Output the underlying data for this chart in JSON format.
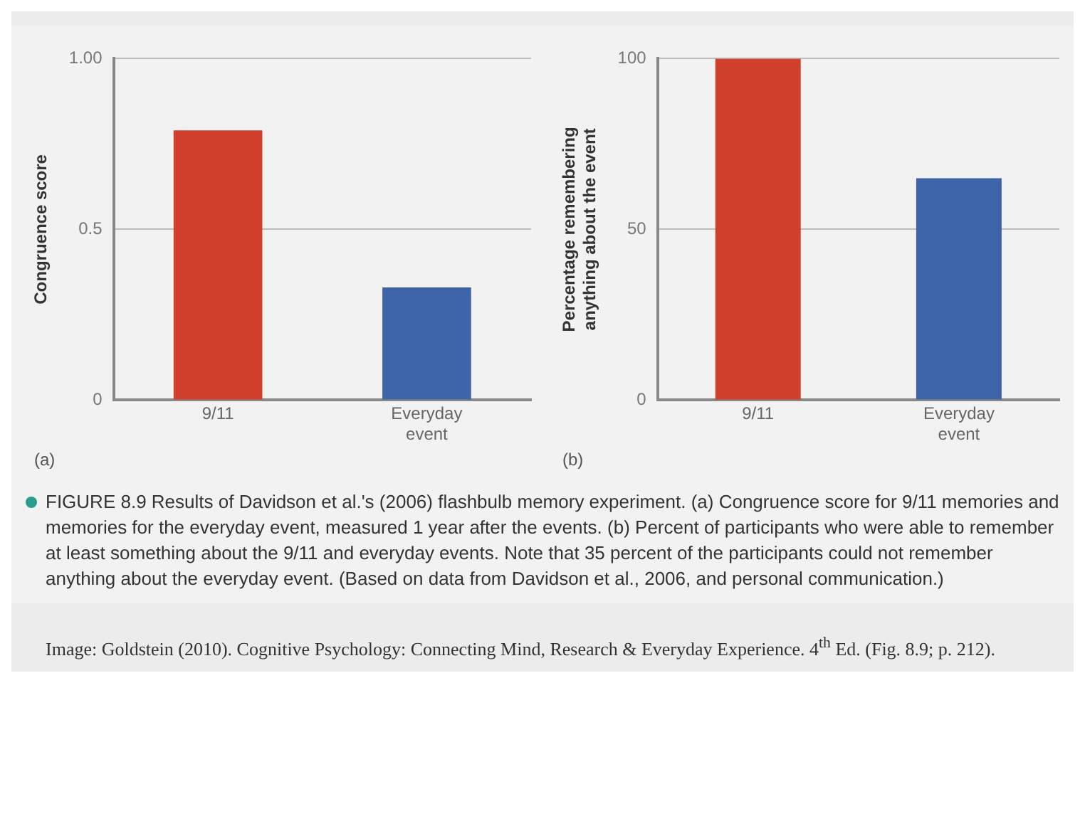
{
  "chart_data": [
    {
      "type": "bar",
      "ylabel": "Congruence score",
      "categories": [
        "9/11",
        "Everyday event"
      ],
      "values": [
        0.79,
        0.33
      ],
      "colors": [
        "#cf3f2b",
        "#3d64a9"
      ],
      "ylim": [
        0,
        1
      ],
      "yticks": [
        0,
        0.5,
        {
          "value": 1,
          "label": "1.00"
        }
      ],
      "grid": "y",
      "legend": false,
      "annotations": [
        "(a)"
      ]
    },
    {
      "type": "bar",
      "ylabel": "Percentage remembering\nanything about the event",
      "categories": [
        "9/11",
        "Everyday event"
      ],
      "values": [
        100,
        65
      ],
      "colors": [
        "#cf3f2b",
        "#3d64a9"
      ],
      "ylim": [
        0,
        100
      ],
      "yticks": [
        0,
        50,
        100
      ],
      "grid": "y",
      "legend": false,
      "annotations": [
        "(b)",
        "FIGURE 8.9 Results of Davidson et al.'s (2006) flashbulb memory experiment. (a) Congruence score for 9/11 memories and memories for the everyday event, measured 1 year after the events. (b) Percent of participants who were able to remember at least something about the 9/11 and everyday events. Note that 35 percent of the participants could not remember anything about the everyday event. (Based on data from Davidson et al., 2006, and personal communication.)",
        "Image: Goldstein (2010). Cognitive Psychology: Connecting Mind, Research & Everyday Experience. 4$^{th}$ Ed. (Fig. 8.9; p. 212)."
      ]
    }
  ]
}
